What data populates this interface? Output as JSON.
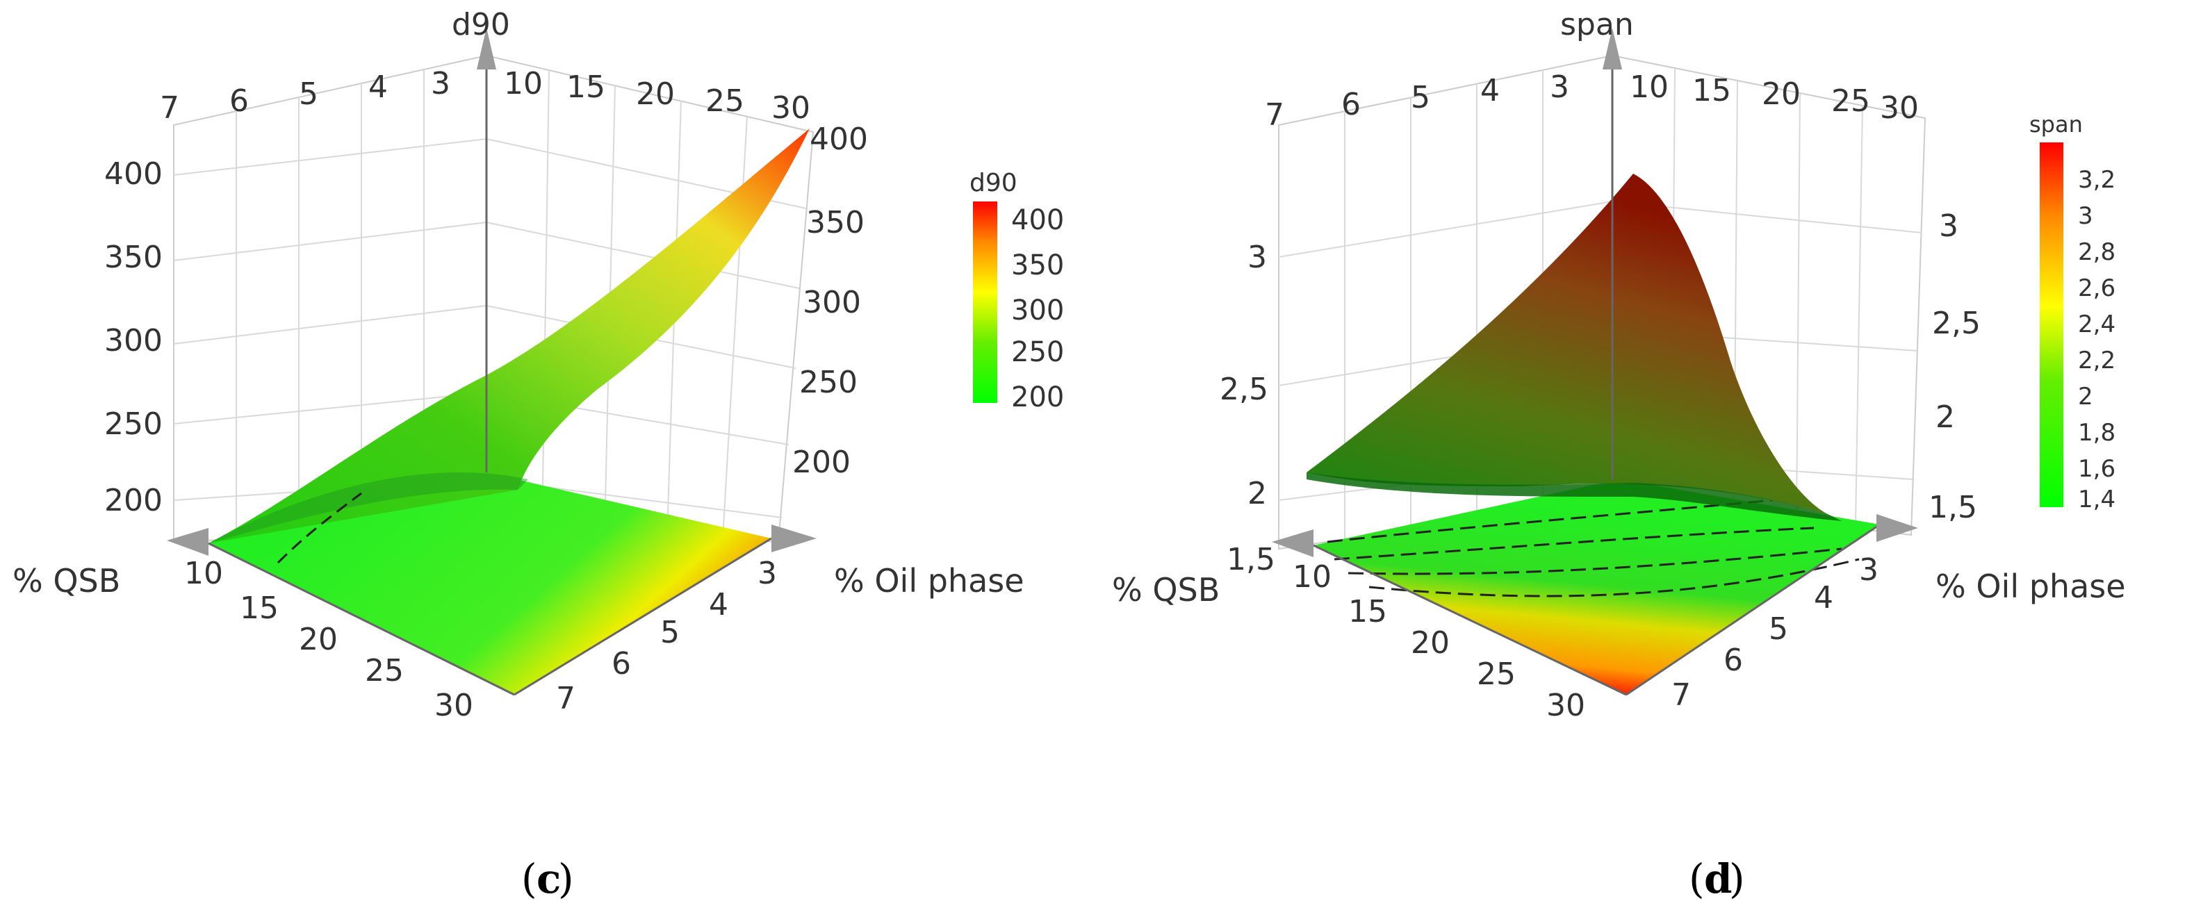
{
  "chart_data": [
    {
      "type": "surface3d",
      "panel_label": "c",
      "z_title": "d90",
      "x_axis_label": "% QSB",
      "y_axis_label": "% Oil phase",
      "x_ticks": [
        "10",
        "15",
        "20",
        "25",
        "30"
      ],
      "y_ticks": [
        "3",
        "4",
        "5",
        "6",
        "7"
      ],
      "z_ticks": [
        "200",
        "250",
        "300",
        "350",
        "400"
      ],
      "x_range": [
        10,
        30
      ],
      "y_range": [
        3,
        7
      ],
      "z_range": [
        175,
        410
      ],
      "surface_corners": {
        "qsb10_oil3": 180,
        "qsb10_oil7": 185,
        "qsb30_oil7": 190,
        "qsb30_oil3": 410
      },
      "legend": {
        "title": "d90",
        "ticks": [
          "200",
          "250",
          "300",
          "350",
          "400"
        ],
        "min": 200,
        "max": 430,
        "colors": [
          "#00ff00",
          "#ffff00",
          "#ff0000"
        ]
      },
      "grid": true,
      "legend_position": "right"
    },
    {
      "type": "surface3d",
      "panel_label": "d",
      "z_title": "span",
      "x_axis_label": "% QSB",
      "y_axis_label": "% Oil phase",
      "x_ticks": [
        "10",
        "15",
        "20",
        "25",
        "30"
      ],
      "y_ticks": [
        "3",
        "4",
        "5",
        "6",
        "7"
      ],
      "z_ticks_left": [
        "1,5",
        "2",
        "2,5",
        "3"
      ],
      "z_ticks_right": [
        "1,5",
        "2",
        "2,5",
        "3"
      ],
      "top_ticks_left": [
        "7",
        "6",
        "5",
        "4",
        "3"
      ],
      "top_ticks_right": [
        "10",
        "15",
        "20",
        "25",
        "30"
      ],
      "x_range": [
        10,
        30
      ],
      "y_range": [
        3,
        7
      ],
      "z_range": [
        1.45,
        3.35
      ],
      "surface_corners": {
        "qsb10_oil3": 3.3,
        "qsb10_oil7": 1.9,
        "qsb30_oil7": 1.55,
        "qsb30_oil3": 1.5
      },
      "legend": {
        "title": "span",
        "ticks": [
          "1,4",
          "1,6",
          "1,8",
          "2",
          "2,2",
          "2,4",
          "2,6",
          "2,8",
          "3",
          "3,2"
        ],
        "min": 1.4,
        "max": 3.3,
        "colors": [
          "#00ff00",
          "#ffff00",
          "#ff0000"
        ]
      },
      "grid": true,
      "legend_position": "right"
    }
  ],
  "panel_c_top_ticks": {
    "left": [
      "7",
      "6",
      "5",
      "4",
      "3"
    ],
    "right": [
      "10",
      "15",
      "20",
      "25",
      "30"
    ],
    "z_right": [
      "200",
      "250",
      "300",
      "350",
      "400"
    ]
  },
  "captions": {
    "c": "c",
    "d": "d"
  },
  "icon_names": [
    "cone-arrow-icon"
  ]
}
